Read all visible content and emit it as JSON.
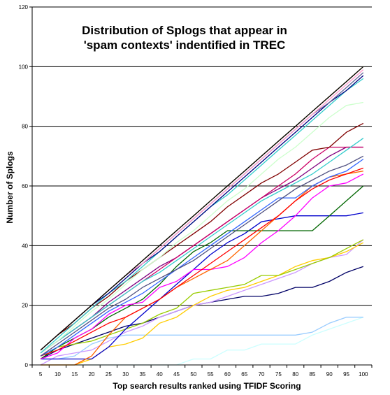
{
  "chart_data": {
    "type": "line",
    "title": [
      "Distribution of Splogs that appear in",
      "'spam contexts' indentified in TREC"
    ],
    "xlabel": "Top search results ranked using TFIDF Scoring",
    "ylabel": "Number of Splogs",
    "x": [
      5,
      10,
      15,
      20,
      25,
      30,
      35,
      40,
      45,
      50,
      55,
      60,
      65,
      70,
      75,
      80,
      85,
      90,
      95,
      100
    ],
    "xlim": [
      2.5,
      102.5
    ],
    "ylim": [
      0,
      120
    ],
    "yticks": [
      0,
      20,
      40,
      60,
      80,
      100,
      120
    ],
    "grid": "horizontal",
    "legend": "none",
    "series": [
      {
        "color": "#000000",
        "values": [
          5,
          10,
          15,
          20,
          25,
          30,
          35,
          40,
          45,
          50,
          55,
          60,
          65,
          70,
          75,
          80,
          85,
          90,
          95,
          100
        ]
      },
      {
        "color": "#7f6000",
        "values": [
          5,
          10,
          15,
          20,
          25,
          30,
          35,
          40,
          45,
          50,
          55,
          60,
          65,
          70,
          75,
          80,
          85,
          90,
          95,
          100
        ]
      },
      {
        "color": "#ff99cc",
        "values": [
          5,
          10,
          15,
          20,
          25,
          30,
          34,
          39,
          44,
          49,
          54,
          59,
          64,
          69,
          74,
          79,
          84,
          89,
          94,
          99
        ]
      },
      {
        "color": "#666699",
        "values": [
          5,
          10,
          15,
          20,
          25,
          30,
          34,
          39,
          44,
          49,
          54,
          59,
          64,
          69,
          74,
          79,
          84,
          88,
          93,
          98
        ]
      },
      {
        "color": "#000080",
        "values": [
          5,
          10,
          15,
          20,
          24,
          29,
          34,
          38,
          43,
          48,
          53,
          58,
          63,
          68,
          73,
          78,
          83,
          88,
          92,
          97
        ]
      },
      {
        "color": "#33cccc",
        "values": [
          4,
          9,
          14,
          19,
          24,
          28,
          33,
          38,
          43,
          48,
          53,
          57,
          62,
          67,
          72,
          77,
          82,
          87,
          92,
          96
        ]
      },
      {
        "color": "#ccffcc",
        "values": [
          4,
          8,
          13,
          18,
          22,
          27,
          32,
          36,
          41,
          45,
          50,
          55,
          59,
          64,
          69,
          73,
          78,
          83,
          87,
          88
        ]
      },
      {
        "color": "#800000",
        "values": [
          5,
          10,
          14,
          19,
          23,
          28,
          32,
          36,
          40,
          44,
          48,
          53,
          57,
          61,
          64,
          68,
          72,
          73,
          78,
          81
        ]
      },
      {
        "color": "#33cccc",
        "values": [
          4,
          8,
          12,
          16,
          20,
          24,
          28,
          31,
          35,
          39,
          43,
          47,
          51,
          55,
          58,
          61,
          64,
          68,
          72,
          76
        ]
      },
      {
        "color": "#cc0066",
        "values": [
          4,
          8,
          12,
          16,
          20,
          24,
          28,
          32,
          36,
          40,
          44,
          48,
          52,
          56,
          60,
          64,
          69,
          73,
          73,
          73
        ]
      },
      {
        "color": "#800080",
        "values": [
          4,
          8,
          12,
          16,
          21,
          25,
          29,
          33,
          36,
          40,
          44,
          48,
          52,
          56,
          59,
          62,
          66,
          70,
          73,
          73
        ]
      },
      {
        "color": "#4f4f7f",
        "values": [
          3,
          7,
          11,
          15,
          19,
          22,
          26,
          29,
          32,
          35,
          39,
          43,
          47,
          51,
          55,
          59,
          62,
          65,
          67,
          70
        ]
      },
      {
        "color": "#3366ff",
        "values": [
          3,
          6,
          10,
          14,
          18,
          21,
          24,
          28,
          32,
          36,
          40,
          44,
          48,
          52,
          56,
          56,
          60,
          63,
          65,
          69
        ]
      },
      {
        "color": "#ff0000",
        "values": [
          3,
          5,
          8,
          11,
          14,
          16,
          19,
          22,
          26,
          30,
          34,
          38,
          42,
          46,
          50,
          55,
          59,
          62,
          64,
          66
        ]
      },
      {
        "color": "#ff6600",
        "values": [
          0,
          0,
          0,
          3,
          10,
          16,
          19,
          22,
          26,
          29,
          32,
          35,
          40,
          45,
          50,
          55,
          60,
          63,
          64,
          65
        ]
      },
      {
        "color": "#ff00ff",
        "values": [
          2,
          4,
          9,
          12,
          17,
          20,
          21,
          26,
          28,
          32,
          32,
          33,
          36,
          41,
          45,
          50,
          56,
          60,
          61,
          64
        ]
      },
      {
        "color": "#006600",
        "values": [
          2,
          6,
          9,
          12,
          16,
          19,
          22,
          27,
          33,
          38,
          41,
          45,
          45,
          45,
          45,
          45,
          45,
          50,
          55,
          60
        ]
      },
      {
        "color": "#0000cc",
        "values": [
          2,
          2,
          2,
          2,
          6,
          12,
          17,
          22,
          27,
          32,
          37,
          41,
          44,
          48,
          49,
          50,
          50,
          50,
          50,
          51
        ]
      },
      {
        "color": "#99cc00",
        "values": [
          2,
          6,
          7,
          8,
          10,
          12,
          14,
          17,
          19,
          24,
          25,
          26,
          27,
          30,
          30,
          32,
          34,
          36,
          39,
          42
        ]
      },
      {
        "color": "#ffcc00",
        "values": [
          0,
          0,
          0,
          2,
          6,
          7,
          9,
          14,
          16,
          20,
          23,
          25,
          26,
          28,
          30,
          33,
          35,
          36,
          38,
          41
        ]
      },
      {
        "color": "#cc99ff",
        "values": [
          0,
          3,
          4,
          5,
          8,
          11,
          13,
          16,
          18,
          20,
          21,
          23,
          25,
          27,
          29,
          31,
          34,
          36,
          37,
          42
        ]
      },
      {
        "color": "#000066",
        "values": [
          2,
          5,
          7,
          9,
          11,
          13,
          14,
          16,
          18,
          20,
          21,
          22,
          23,
          23,
          24,
          26,
          26,
          28,
          31,
          33
        ]
      },
      {
        "color": "#99ccff",
        "values": [
          2,
          2,
          3,
          7,
          9,
          10,
          10,
          10,
          10,
          10,
          10,
          10,
          10,
          10,
          10,
          10,
          11,
          14,
          16,
          16
        ]
      },
      {
        "color": "#ccffff",
        "values": [
          0,
          0,
          0,
          0,
          0,
          0,
          0,
          0,
          0,
          2,
          2,
          5,
          5,
          7,
          7,
          7,
          10,
          12,
          14,
          16
        ]
      }
    ]
  }
}
